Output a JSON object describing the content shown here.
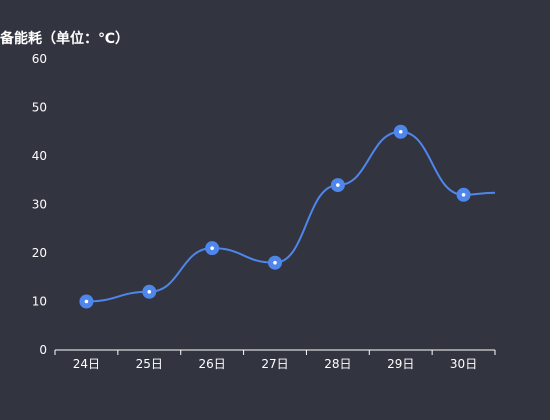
{
  "chart_data": {
    "type": "line",
    "ylabel": "备能耗（单位：℃）",
    "categories": [
      "24日",
      "25日",
      "26日",
      "27日",
      "28日",
      "29日",
      "30日"
    ],
    "series": [
      {
        "values": [
          10,
          12,
          21,
          18,
          34,
          45,
          32
        ]
      }
    ],
    "ylim": [
      0,
      60
    ],
    "yticks": [
      "0",
      "10",
      "20",
      "30",
      "40",
      "50",
      "60"
    ],
    "grid": false,
    "smooth": true,
    "line_color": "#4f86ec",
    "marker_color": "#ffffff",
    "axis_color": "#ffffff",
    "background_color": "#323440"
  }
}
